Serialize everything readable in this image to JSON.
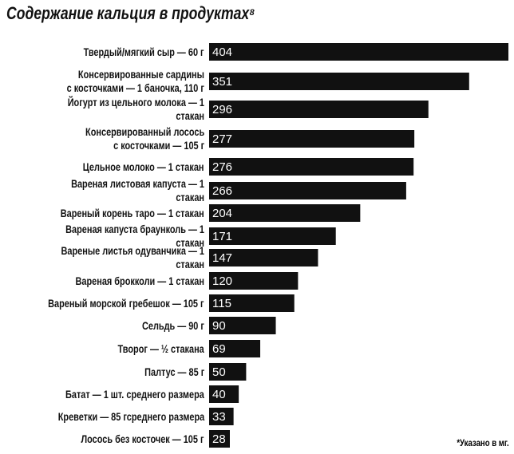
{
  "chart_data": {
    "type": "bar",
    "orientation": "horizontal",
    "title": "Содержание кальция в продуктах⁸",
    "note": "*Указано в мг.",
    "color": "#111111",
    "categories": [
      "Твердый/мягкий сыр — 60 г",
      "Консервированные сардины\nс косточками — 1 баночка, 110 г",
      "Йогурт из цельного молока — 1 стакан",
      "Консервированный лосось\nс косточками — 105 г",
      "Цельное молоко — 1 стакан",
      "Вареная листовая капуста — 1 стакан",
      "Вареный корень таро — 1 стакан",
      "Вареная капуста браунколь — 1 стакан",
      "Вареные листья одуванчика — 1 стакан",
      "Вареная брокколи — 1 стакан",
      "Вареный морской гребешок — 105 г",
      "Сельдь — 90 г",
      "Творог — ½ стакана",
      "Палтус — 85 г",
      "Батат — 1 шт.  среднего размера",
      "Креветки — 85 гсреднего размера",
      "Лосось без косточек — 105 г"
    ],
    "values": [
      404,
      351,
      296,
      277,
      276,
      266,
      204,
      171,
      147,
      120,
      115,
      90,
      69,
      50,
      40,
      33,
      28
    ]
  }
}
